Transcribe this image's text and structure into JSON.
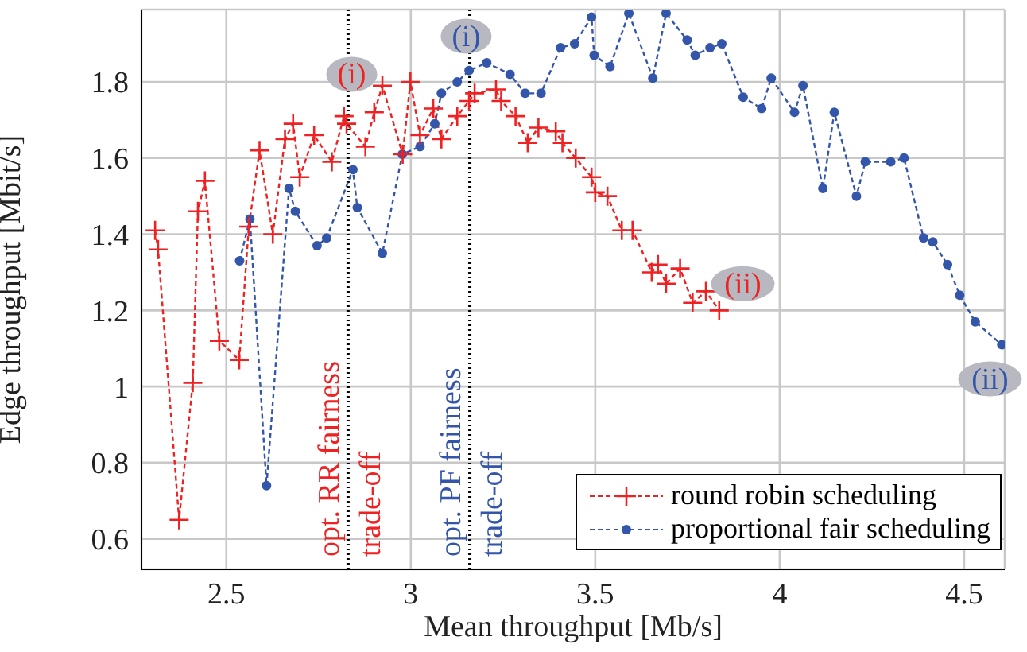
{
  "chart_data": {
    "type": "line",
    "xlabel": "Mean throughput [Mb/s]",
    "ylabel": "Edge throughput [Mbit/s]",
    "xlim": [
      2.27,
      4.61
    ],
    "ylim": [
      0.52,
      1.99
    ],
    "xticks": [
      2.5,
      3,
      3.5,
      4,
      4.5
    ],
    "yticks": [
      0.6,
      0.8,
      1,
      1.2,
      1.4,
      1.6,
      1.8
    ],
    "grid": true,
    "legend": "bottom right",
    "line_style": "dashed",
    "series": [
      {
        "name": "round robin scheduling",
        "color": "#ee2222",
        "marker": "cross",
        "x": [
          2.307,
          2.315,
          2.372,
          2.409,
          2.423,
          2.442,
          2.481,
          2.535,
          2.561,
          2.59,
          2.626,
          2.659,
          2.681,
          2.699,
          2.738,
          2.786,
          2.819,
          2.826,
          2.877,
          2.901,
          2.923,
          2.978,
          2.999,
          3.025,
          3.061,
          3.083,
          3.126,
          3.158,
          3.173,
          3.231,
          3.245,
          3.284,
          3.317,
          3.346,
          3.393,
          3.411,
          3.447,
          3.49,
          3.5,
          3.533,
          3.572,
          3.601,
          3.653,
          3.67,
          3.692,
          3.73,
          3.764,
          3.8,
          3.836
        ],
        "values": [
          1.41,
          1.36,
          0.65,
          1.01,
          1.46,
          1.54,
          1.12,
          1.07,
          1.42,
          1.62,
          1.4,
          1.65,
          1.69,
          1.55,
          1.66,
          1.59,
          1.71,
          1.69,
          1.63,
          1.72,
          1.79,
          1.61,
          1.8,
          1.66,
          1.73,
          1.65,
          1.71,
          1.75,
          1.77,
          1.78,
          1.75,
          1.71,
          1.64,
          1.68,
          1.67,
          1.64,
          1.6,
          1.55,
          1.51,
          1.5,
          1.41,
          1.41,
          1.3,
          1.32,
          1.27,
          1.31,
          1.22,
          1.25,
          1.2
        ]
      },
      {
        "name": "proportional fair scheduling",
        "color": "#3355aa",
        "marker": "circle",
        "x": [
          2.536,
          2.564,
          2.609,
          2.67,
          2.687,
          2.746,
          2.772,
          2.843,
          2.855,
          2.923,
          2.977,
          3.025,
          3.065,
          3.083,
          3.126,
          3.158,
          3.206,
          3.269,
          3.31,
          3.353,
          3.406,
          3.444,
          3.49,
          3.497,
          3.54,
          3.591,
          3.656,
          3.692,
          3.749,
          3.771,
          3.811,
          3.843,
          3.901,
          3.951,
          3.977,
          4.04,
          4.063,
          4.117,
          4.148,
          4.208,
          4.232,
          4.301,
          4.337,
          4.39,
          4.415,
          4.455,
          4.488,
          4.53,
          4.602
        ],
        "values": [
          1.33,
          1.44,
          0.74,
          1.52,
          1.46,
          1.37,
          1.39,
          1.57,
          1.47,
          1.35,
          1.61,
          1.63,
          1.69,
          1.77,
          1.8,
          1.83,
          1.85,
          1.82,
          1.77,
          1.77,
          1.89,
          1.9,
          1.97,
          1.87,
          1.84,
          1.98,
          1.81,
          1.98,
          1.91,
          1.87,
          1.89,
          1.9,
          1.76,
          1.73,
          1.81,
          1.72,
          1.79,
          1.52,
          1.72,
          1.5,
          1.59,
          1.59,
          1.6,
          1.39,
          1.38,
          1.32,
          1.24,
          1.17,
          1.11
        ]
      }
    ],
    "ref_lines": [
      {
        "axis": "x",
        "value": 2.83,
        "label": "opt. RR fairness trade-off",
        "color": "#000000",
        "line_style": "dotted"
      },
      {
        "axis": "x",
        "value": 3.16,
        "label": "opt. PF fairness trade-off",
        "color": "#000000",
        "line_style": "dotted"
      }
    ],
    "annotations": [
      {
        "text": "(i)",
        "x": 2.84,
        "y": 1.82
      },
      {
        "text": "(ii)",
        "x": 3.9,
        "y": 1.27
      },
      {
        "text": "(i)",
        "x": 3.15,
        "y": 1.92
      },
      {
        "text": "(ii)",
        "x": 4.57,
        "y": 1.02
      }
    ]
  }
}
